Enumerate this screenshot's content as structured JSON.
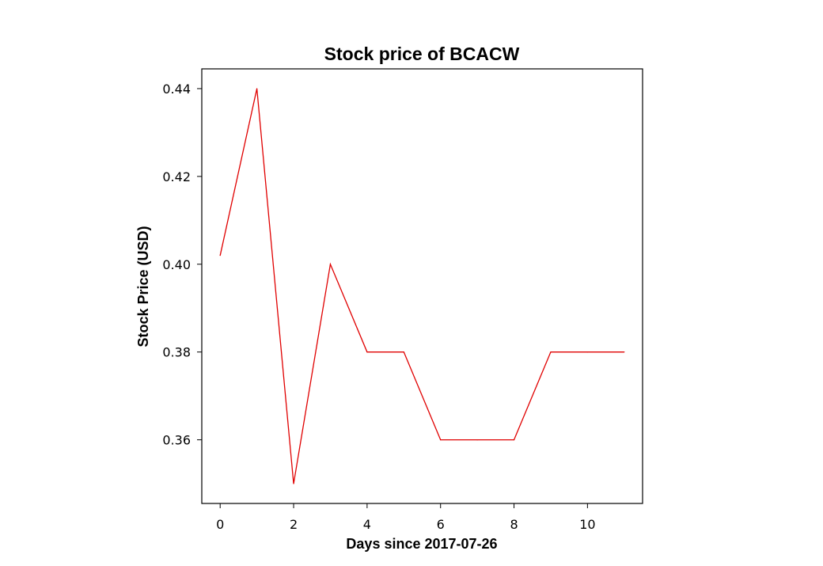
{
  "chart_data": {
    "type": "line",
    "title": "Stock price of BCACW",
    "xlabel": "Days since 2017-07-26",
    "ylabel": "Stock Price (USD)",
    "x": [
      0,
      1,
      2,
      3,
      4,
      5,
      6,
      7,
      8,
      9,
      10,
      11
    ],
    "series": [
      {
        "values": [
          0.402,
          0.44,
          0.35,
          0.4,
          0.38,
          0.38,
          0.36,
          0.36,
          0.36,
          0.38,
          0.38,
          0.38
        ]
      }
    ],
    "xlim": [
      -0.5,
      11.5
    ],
    "ylim": [
      0.3455,
      0.4445
    ],
    "xticks": [
      0,
      2,
      4,
      6,
      8,
      10
    ],
    "xtick_labels": [
      "0",
      "2",
      "4",
      "6",
      "8",
      "10"
    ],
    "yticks": [
      0.36,
      0.38,
      0.4,
      0.42,
      0.44
    ],
    "ytick_labels": [
      "0.36",
      "0.38",
      "0.40",
      "0.42",
      "0.44"
    ],
    "line_color": "#e00000",
    "grid": false,
    "legend": false
  }
}
